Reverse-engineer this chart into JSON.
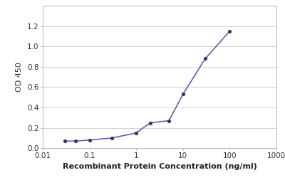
{
  "x": [
    0.03,
    0.05,
    0.1,
    0.3,
    1.0,
    2.0,
    5.0,
    10.0,
    30.0,
    100.0
  ],
  "y": [
    0.07,
    0.07,
    0.08,
    0.1,
    0.15,
    0.25,
    0.27,
    0.53,
    0.88,
    1.15
  ],
  "line_color": "#5566aa",
  "marker_color": "#333366",
  "marker_size": 3.5,
  "line_width": 1.2,
  "xlabel": "Recombinant Protein Concentration (ng/ml)",
  "ylabel": "OD 450",
  "xlim_low": 0.01,
  "xlim_high": 1000,
  "ylim_low": 0,
  "ylim_high": 1.4,
  "yticks": [
    0,
    0.2,
    0.4,
    0.6,
    0.8,
    1.0,
    1.2
  ],
  "xticks": [
    0.01,
    0.1,
    1,
    10,
    100,
    1000
  ],
  "xtick_labels": [
    "0.01",
    "0.1",
    "1",
    "10",
    "100",
    "1000"
  ],
  "grid_color": "#d0d0d0",
  "background_color": "#ffffff",
  "xlabel_fontsize": 8,
  "ylabel_fontsize": 8,
  "tick_fontsize": 7.5
}
